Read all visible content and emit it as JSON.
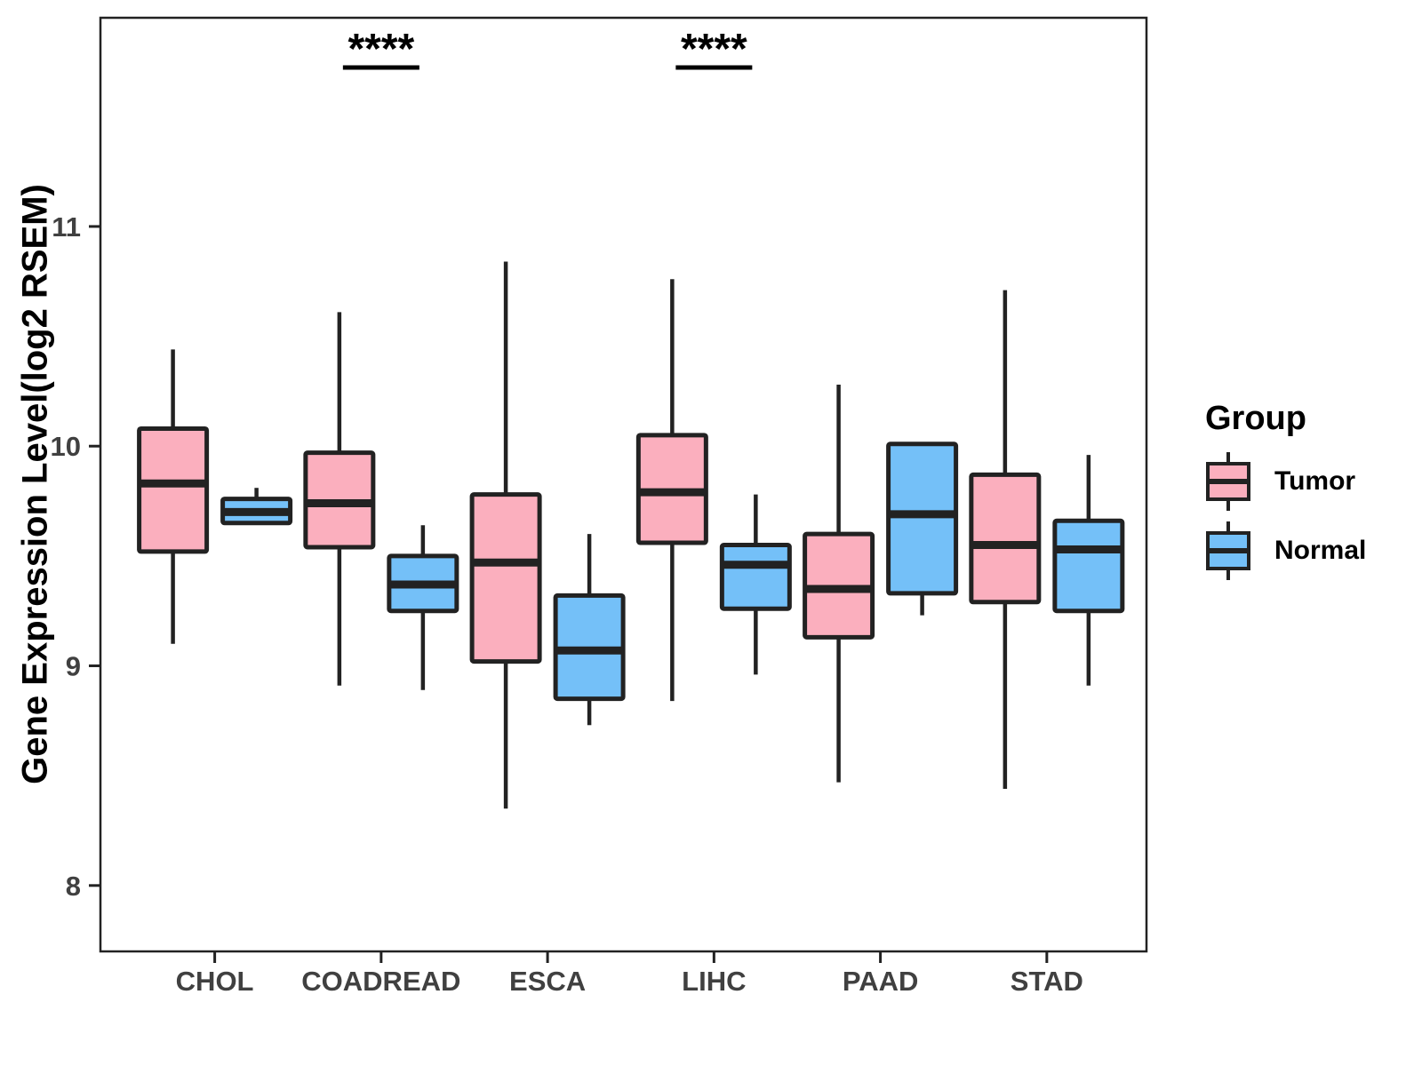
{
  "chart_data": {
    "type": "boxplot",
    "title": "",
    "xlabel": "",
    "ylabel": "Gene Expression Level(log2 RSEM)",
    "categories": [
      "CHOL",
      "COADREAD",
      "ESCA",
      "LIHC",
      "PAAD",
      "STAD"
    ],
    "y_ticks": [
      8,
      9,
      10,
      11
    ],
    "ylim": [
      7.7,
      11.95
    ],
    "grid": false,
    "panel_border": true,
    "stroke_color": "#222222",
    "axis_text_color": "#404040",
    "series": [
      {
        "name": "Tumor",
        "color": "#FBAFBE",
        "boxes": [
          {
            "category": "CHOL",
            "low": 9.1,
            "q1": 9.52,
            "median": 9.83,
            "q3": 10.08,
            "high": 10.44
          },
          {
            "category": "COADREAD",
            "low": 8.91,
            "q1": 9.54,
            "median": 9.74,
            "q3": 9.97,
            "high": 10.61
          },
          {
            "category": "ESCA",
            "low": 8.35,
            "q1": 9.02,
            "median": 9.47,
            "q3": 9.78,
            "high": 10.84
          },
          {
            "category": "LIHC",
            "low": 8.84,
            "q1": 9.56,
            "median": 9.79,
            "q3": 10.05,
            "high": 10.76
          },
          {
            "category": "PAAD",
            "low": 8.47,
            "q1": 9.13,
            "median": 9.35,
            "q3": 9.6,
            "high": 10.28
          },
          {
            "category": "STAD",
            "low": 8.44,
            "q1": 9.29,
            "median": 9.55,
            "q3": 9.87,
            "high": 10.71
          }
        ]
      },
      {
        "name": "Normal",
        "color": "#74C0F8",
        "boxes": [
          {
            "category": "CHOL",
            "low": 9.65,
            "q1": 9.65,
            "median": 9.7,
            "q3": 9.76,
            "high": 9.81
          },
          {
            "category": "COADREAD",
            "low": 8.89,
            "q1": 9.25,
            "median": 9.37,
            "q3": 9.5,
            "high": 9.64
          },
          {
            "category": "ESCA",
            "low": 8.73,
            "q1": 8.85,
            "median": 9.07,
            "q3": 9.32,
            "high": 9.6
          },
          {
            "category": "LIHC",
            "low": 8.96,
            "q1": 9.26,
            "median": 9.46,
            "q3": 9.55,
            "high": 9.78
          },
          {
            "category": "PAAD",
            "low": 9.23,
            "q1": 9.33,
            "median": 9.69,
            "q3": 10.01,
            "high": 10.01
          },
          {
            "category": "STAD",
            "low": 8.91,
            "q1": 9.25,
            "median": 9.53,
            "q3": 9.66,
            "high": 9.96
          }
        ]
      }
    ],
    "significance": [
      {
        "category": "COADREAD",
        "label": "****"
      },
      {
        "category": "LIHC",
        "label": "****"
      }
    ],
    "legend": {
      "title": "Group",
      "position": "right",
      "entries": [
        {
          "label": "Tumor",
          "color": "#FBAFBE"
        },
        {
          "label": "Normal",
          "color": "#74C0F8"
        }
      ]
    }
  }
}
